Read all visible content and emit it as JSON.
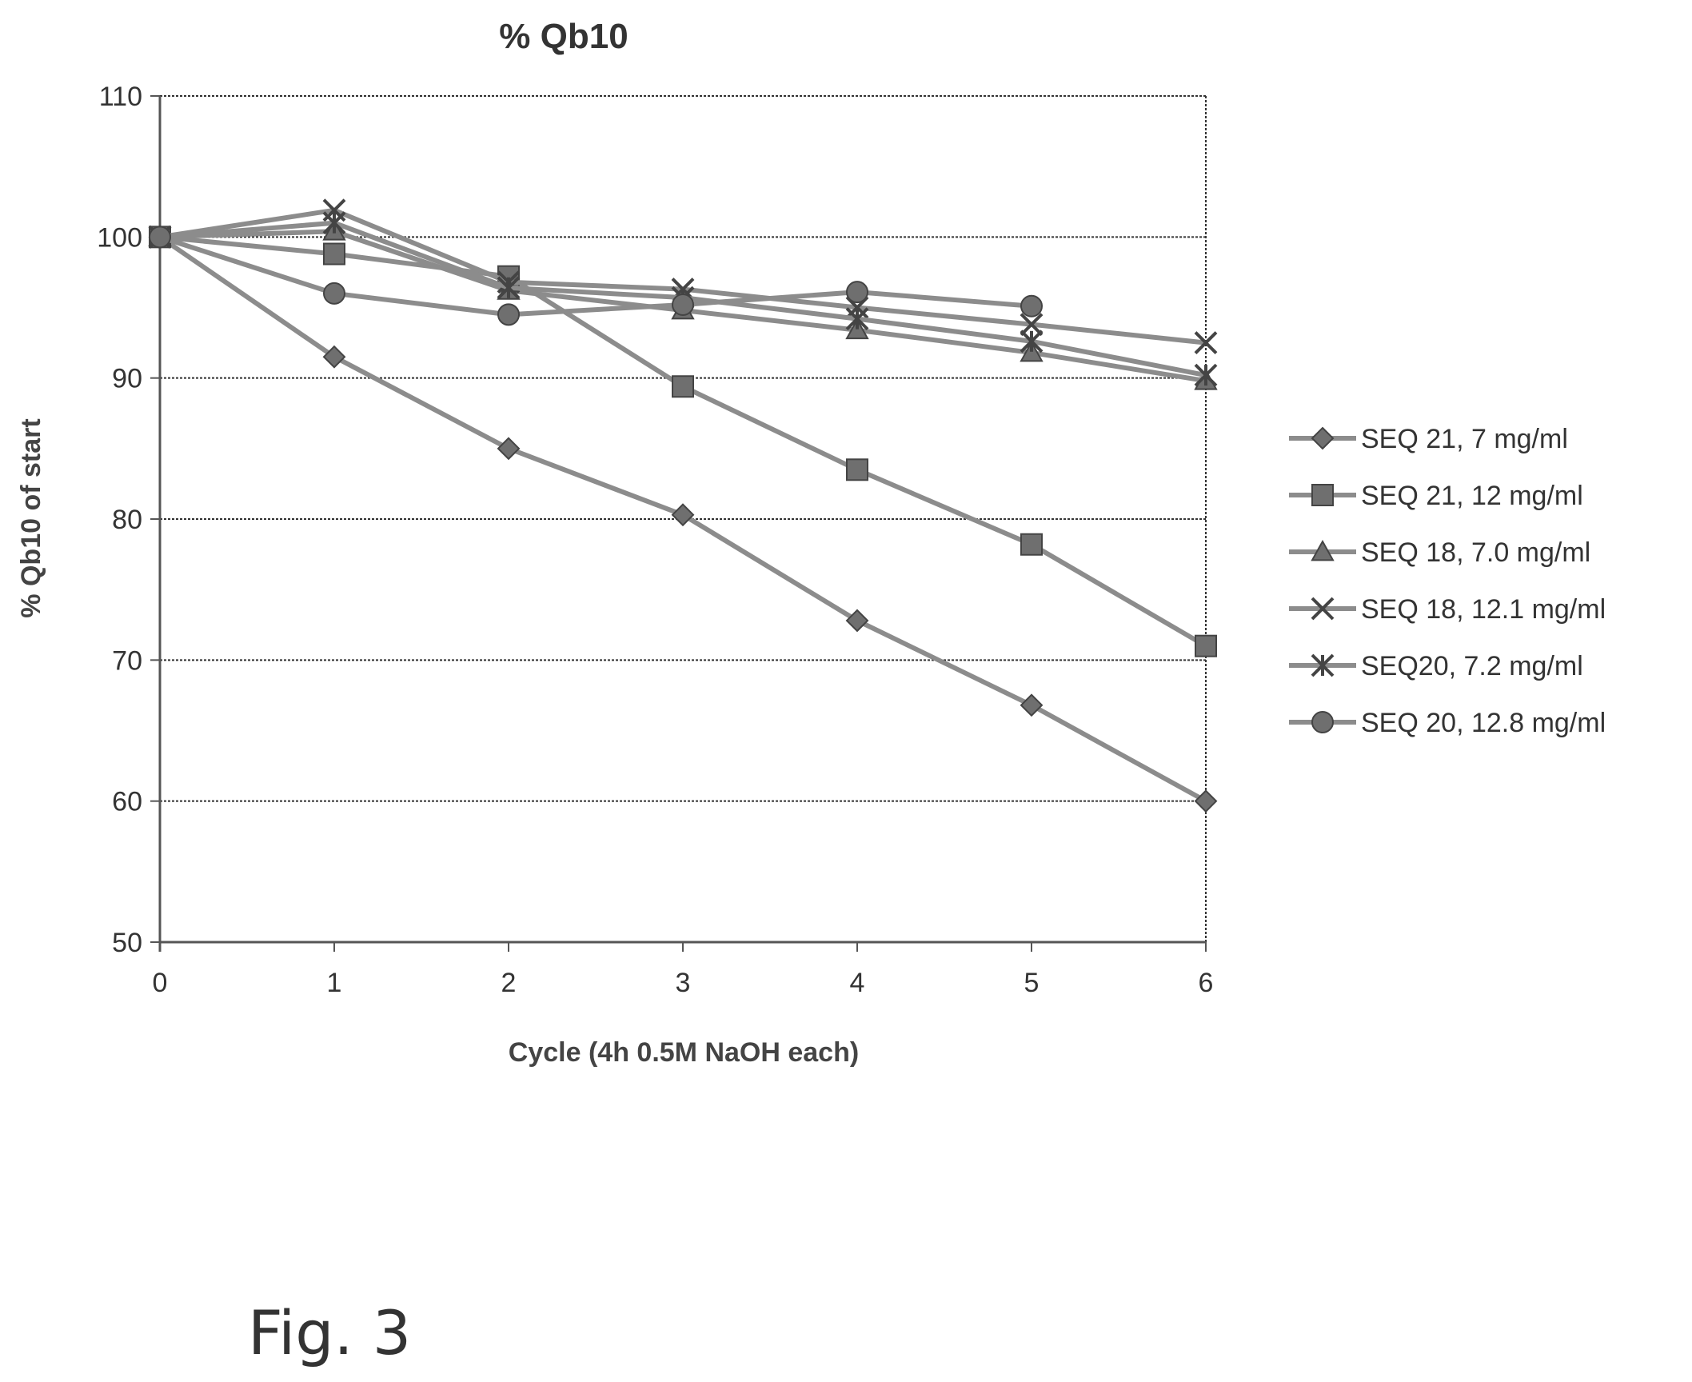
{
  "figure": {
    "caption": "Fig. 3"
  },
  "chart_data": {
    "type": "line",
    "title": "% Qb10",
    "xlabel": "Cycle (4h 0.5M NaOH each)",
    "ylabel": "% Qb10 of start",
    "x": [
      0,
      1,
      2,
      3,
      4,
      5,
      6
    ],
    "xlim": [
      0,
      6
    ],
    "ylim": [
      50,
      110
    ],
    "yticks": [
      50,
      60,
      70,
      80,
      90,
      100,
      110
    ],
    "xticks": [
      0,
      1,
      2,
      3,
      4,
      5,
      6
    ],
    "grid": "horizontal",
    "legend": "right",
    "colors": {
      "line": "#8c8c8c",
      "marker": "#6f6f6f",
      "grid": "#333333",
      "axis": "#555555"
    },
    "series": [
      {
        "name": "SEQ 21, 7 mg/ml",
        "marker": "diamond",
        "values": [
          100,
          91.5,
          85.0,
          80.3,
          72.8,
          66.8,
          60.0
        ]
      },
      {
        "name": "SEQ 21, 12 mg/ml",
        "marker": "square",
        "values": [
          100,
          98.8,
          97.2,
          89.4,
          83.5,
          78.2,
          71.0
        ]
      },
      {
        "name": "SEQ 18, 7.0 mg/ml",
        "marker": "triangle",
        "values": [
          100,
          100.4,
          96.2,
          94.8,
          93.4,
          91.8,
          89.8
        ]
      },
      {
        "name": "SEQ 18, 12.1 mg/ml",
        "marker": "x",
        "values": [
          100,
          101.9,
          96.8,
          96.3,
          95.0,
          93.8,
          92.5
        ]
      },
      {
        "name": "SEQ20, 7.2 mg/ml",
        "marker": "asterisk",
        "values": [
          100,
          101.0,
          96.4,
          95.7,
          94.2,
          92.6,
          90.2
        ]
      },
      {
        "name": "SEQ 20, 12.8 mg/ml",
        "marker": "circle",
        "values": [
          100,
          96.0,
          94.5,
          95.2,
          96.1,
          95.1,
          null
        ]
      }
    ]
  }
}
